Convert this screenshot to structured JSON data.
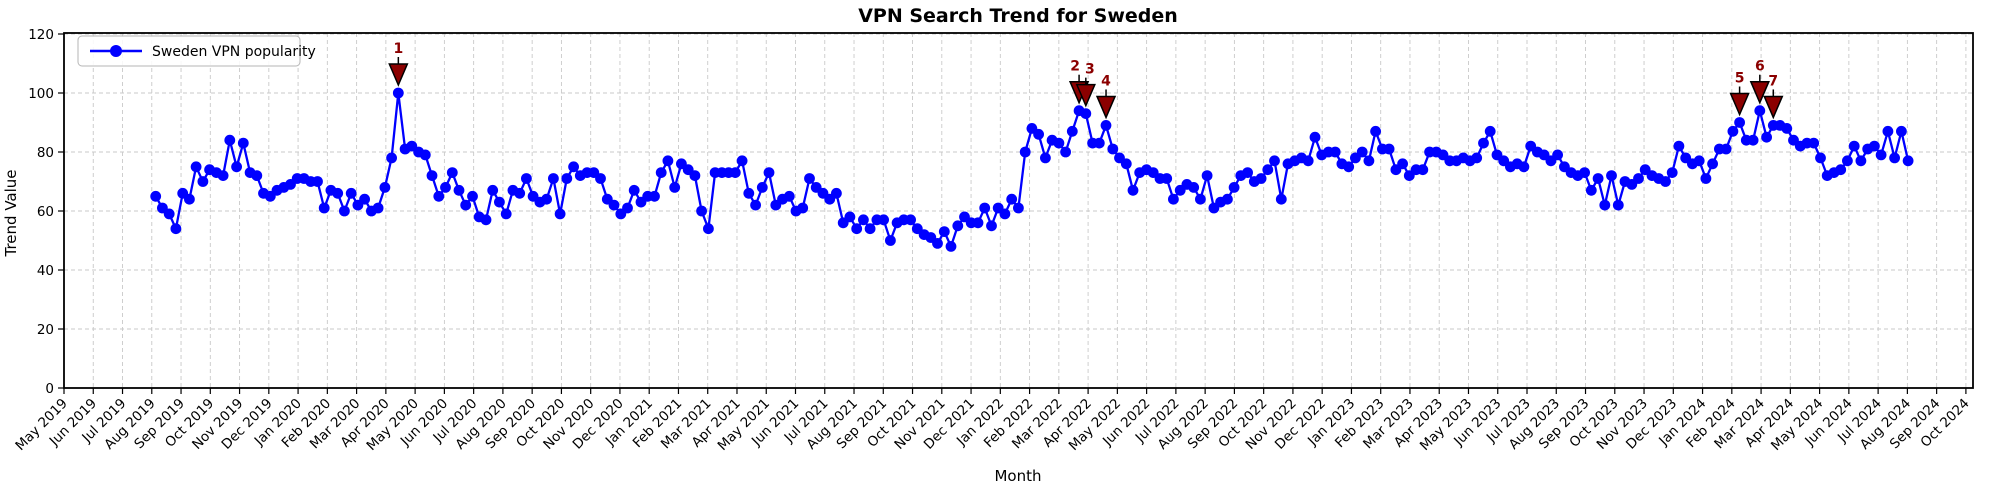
{
  "title": "VPN Search Trend for Sweden",
  "legend": {
    "label": "Sweden VPN popularity"
  },
  "axes": {
    "x_label": "Month",
    "y_label": "Trend Value",
    "y_ticks": [
      0,
      20,
      40,
      60,
      80,
      100,
      120
    ],
    "x_ticks": [
      "May 2019",
      "Jun 2019",
      "Jul 2019",
      "Aug 2019",
      "Sep 2019",
      "Oct 2019",
      "Nov 2019",
      "Dec 2019",
      "Jan 2020",
      "Feb 2020",
      "Mar 2020",
      "Apr 2020",
      "May 2020",
      "Jun 2020",
      "Jul 2020",
      "Aug 2020",
      "Sep 2020",
      "Oct 2020",
      "Nov 2020",
      "Dec 2020",
      "Jan 2021",
      "Feb 2021",
      "Mar 2021",
      "Apr 2021",
      "May 2021",
      "Jun 2021",
      "Jul 2021",
      "Aug 2021",
      "Sep 2021",
      "Oct 2021",
      "Nov 2021",
      "Dec 2021",
      "Jan 2022",
      "Feb 2022",
      "Mar 2022",
      "Apr 2022",
      "May 2022",
      "Jun 2022",
      "Jul 2022",
      "Aug 2022",
      "Sep 2022",
      "Oct 2022",
      "Nov 2022",
      "Dec 2022",
      "Jan 2023",
      "Feb 2023",
      "Mar 2023",
      "Apr 2023",
      "May 2023",
      "Jun 2023",
      "Jul 2023",
      "Aug 2023",
      "Sep 2023",
      "Oct 2023",
      "Nov 2023",
      "Dec 2023",
      "Jan 2024",
      "Feb 2024",
      "Mar 2024",
      "Apr 2024",
      "May 2024",
      "Jun 2024",
      "Jul 2024",
      "Aug 2024",
      "Sep 2024",
      "Oct 2024"
    ]
  },
  "colors": {
    "line": "#0000ff",
    "marker": "#0000ff",
    "annotation_fill": "#8b0000",
    "annotation_edge": "#000000",
    "annotation_text": "#8b0000",
    "grid": "#c9c9c9",
    "spine": "#000000"
  },
  "chart_data": {
    "type": "line",
    "series": [
      {
        "name": "Sweden VPN popularity",
        "cadence": "weekly",
        "first_point_month": "Aug 2019",
        "last_point_month": "Aug 2024",
        "values": [
          65,
          61,
          59,
          54,
          66,
          64,
          75,
          70,
          74,
          73,
          72,
          84,
          75,
          83,
          73,
          72,
          66,
          65,
          67,
          68,
          69,
          71,
          71,
          70,
          70,
          61,
          67,
          66,
          60,
          66,
          62,
          64,
          60,
          61,
          68,
          78,
          100,
          81,
          82,
          80,
          79,
          72,
          65,
          68,
          73,
          67,
          62,
          65,
          58,
          57,
          67,
          63,
          59,
          67,
          66,
          71,
          65,
          63,
          64,
          71,
          59,
          71,
          75,
          72,
          73,
          73,
          71,
          64,
          62,
          59,
          61,
          67,
          63,
          65,
          65,
          73,
          77,
          68,
          76,
          74,
          72,
          60,
          54,
          73,
          73,
          73,
          73,
          77,
          66,
          62,
          68,
          73,
          62,
          64,
          65,
          60,
          61,
          71,
          68,
          66,
          64,
          66,
          56,
          58,
          54,
          57,
          54,
          57,
          57,
          50,
          56,
          57,
          57,
          54,
          52,
          51,
          49,
          53,
          48,
          55,
          58,
          56,
          56,
          61,
          55,
          61,
          59,
          64,
          61,
          80,
          88,
          86,
          78,
          84,
          83,
          80,
          87,
          94,
          93,
          83,
          83,
          89,
          81,
          78,
          76,
          67,
          73,
          74,
          73,
          71,
          71,
          64,
          67,
          69,
          68,
          64,
          72,
          61,
          63,
          64,
          68,
          72,
          73,
          70,
          71,
          74,
          77,
          64,
          76,
          77,
          78,
          77,
          85,
          79,
          80,
          80,
          76,
          75,
          78,
          80,
          77,
          87,
          81,
          81,
          74,
          76,
          72,
          74,
          74,
          80,
          80,
          79,
          77,
          77,
          78,
          77,
          78,
          83,
          87,
          79,
          77,
          75,
          76,
          75,
          82,
          80,
          79,
          77,
          79,
          75,
          73,
          72,
          73,
          67,
          71,
          62,
          72,
          62,
          70,
          69,
          71,
          74,
          72,
          71,
          70,
          73,
          82,
          78,
          76,
          77,
          71,
          76,
          81,
          81,
          87,
          90,
          84,
          84,
          94,
          85,
          89,
          89,
          88,
          84,
          82,
          83,
          83,
          78,
          72,
          73,
          74,
          77,
          82,
          77,
          81,
          82,
          79,
          87,
          78,
          87,
          77
        ]
      }
    ],
    "annotations": [
      {
        "label": "1",
        "index": 36,
        "value": 100
      },
      {
        "label": "2",
        "index": 137,
        "value": 94
      },
      {
        "label": "3",
        "index": 138,
        "value": 93
      },
      {
        "label": "4",
        "index": 141,
        "value": 89
      },
      {
        "label": "5",
        "index": 235,
        "value": 90
      },
      {
        "label": "6",
        "index": 238,
        "value": 94
      },
      {
        "label": "7",
        "index": 240,
        "value": 89
      }
    ],
    "ylim": [
      0,
      120
    ],
    "grid": "dashed",
    "legend_position": "upper-left"
  }
}
